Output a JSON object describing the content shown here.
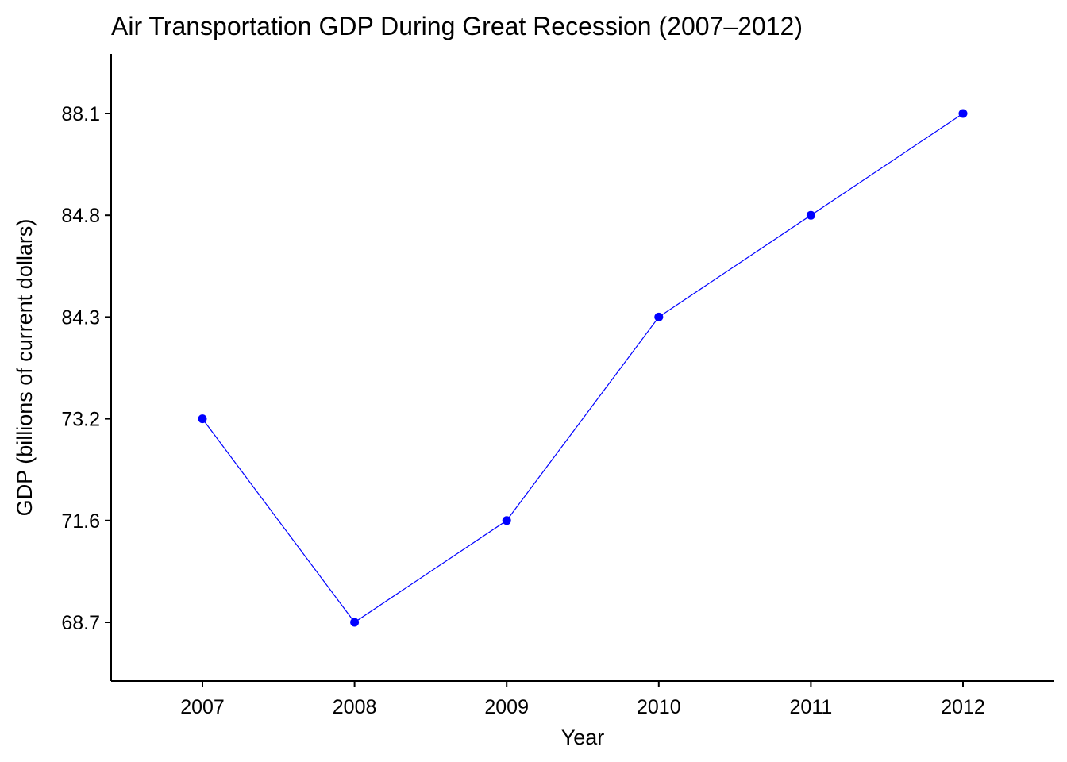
{
  "chart_data": {
    "type": "line",
    "title": "Air Transportation GDP During Great Recession (2007–2012)",
    "xlabel": "Year",
    "ylabel": "GDP (billions of current dollars)",
    "x": [
      "2007",
      "2008",
      "2009",
      "2010",
      "2011",
      "2012"
    ],
    "y_tick_labels": [
      "68.7",
      "71.6",
      "73.2",
      "84.3",
      "84.8",
      "88.1"
    ],
    "series": [
      {
        "values": [
          73.2,
          68.7,
          71.6,
          84.3,
          84.8,
          88.1
        ],
        "color": "#0000ff"
      }
    ],
    "grid": false,
    "legend": "none",
    "axis_color": "#000000"
  }
}
